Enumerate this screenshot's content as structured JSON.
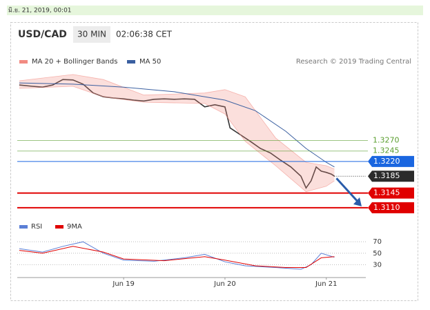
{
  "timestamp": "มิ.ย. 21, 2019, 00:01",
  "chart_data": [
    {
      "type": "line",
      "title": "USD/CAD",
      "interval": "30 MIN",
      "time": "02:06:38 CET",
      "credit": "Research © 2019 Trading Central",
      "xlim": [
        17.95,
        21.39
      ],
      "ylim": [
        1.3095,
        1.344
      ],
      "series": [
        {
          "color": "#333333",
          "x": [
            17.97,
            18.1,
            18.2,
            18.3,
            18.4,
            18.5,
            18.6,
            18.7,
            18.8,
            18.9,
            19.0,
            19.1,
            19.2,
            19.3,
            19.4,
            19.5,
            19.6,
            19.7,
            19.8,
            19.9,
            20.0,
            20.05,
            20.15,
            20.25,
            20.35,
            20.45,
            20.55,
            20.65,
            20.75,
            20.8,
            20.85,
            20.9,
            20.95,
            21.0,
            21.05,
            21.08
          ],
          "values": [
            1.3402,
            1.3399,
            1.3397,
            1.3402,
            1.3415,
            1.3414,
            1.3404,
            1.3383,
            1.3374,
            1.3371,
            1.3369,
            1.3366,
            1.3364,
            1.3368,
            1.3369,
            1.3368,
            1.3369,
            1.3368,
            1.335,
            1.3355,
            1.335,
            1.33,
            1.3284,
            1.3268,
            1.3251,
            1.324,
            1.3223,
            1.3207,
            1.3185,
            1.3157,
            1.3174,
            1.3207,
            1.3197,
            1.3194,
            1.319,
            1.3185
          ]
        },
        {
          "name": "MA 20 + Bollinger Bands",
          "color": "#f28b82",
          "x": [
            17.97,
            18.5,
            18.8,
            19.2,
            19.8,
            20.0,
            20.2,
            20.5,
            20.8,
            21.0,
            21.08
          ],
          "upper": [
            1.3412,
            1.3427,
            1.3415,
            1.3378,
            1.3383,
            1.3391,
            1.3374,
            1.3276,
            1.3218,
            1.321,
            1.3202
          ],
          "lower": [
            1.3394,
            1.3399,
            1.3374,
            1.3361,
            1.3358,
            1.3333,
            1.3268,
            1.321,
            1.3148,
            1.3161,
            1.3174
          ]
        },
        {
          "name": "MA 50",
          "color": "#3a5fa0",
          "x": [
            17.97,
            18.5,
            19.0,
            19.5,
            20.0,
            20.3,
            20.6,
            20.8,
            21.0,
            21.08
          ],
          "values": [
            1.3407,
            1.3404,
            1.3397,
            1.3386,
            1.3366,
            1.3341,
            1.3292,
            1.3251,
            1.3218,
            1.3207
          ]
        }
      ],
      "levels": [
        {
          "value": 1.327,
          "label": "1.3270",
          "color": "#5a9e2f",
          "style": "text"
        },
        {
          "value": 1.3245,
          "label": "1.3245",
          "color": "#5a9e2f",
          "style": "text"
        },
        {
          "value": 1.322,
          "label": "1.3220",
          "color": "#1a66e0",
          "style": "box"
        },
        {
          "value": 1.3185,
          "label": "1.3185",
          "color": "#2b2b2b",
          "style": "current"
        },
        {
          "value": 1.3145,
          "label": "1.3145",
          "color": "#e00000",
          "style": "box"
        },
        {
          "value": 1.311,
          "label": "1.3110",
          "color": "#e00000",
          "style": "box"
        }
      ]
    },
    {
      "type": "line",
      "xlim": [
        17.95,
        21.39
      ],
      "ylim": [
        10,
        75
      ],
      "yticks": [
        70,
        50,
        30
      ],
      "xticks": [
        {
          "value": 19,
          "label": "Jun 19"
        },
        {
          "value": 20,
          "label": "Jun 20"
        },
        {
          "value": 21,
          "label": "Jun 21"
        }
      ],
      "series": [
        {
          "name": "RSI",
          "color": "#5b7fd6",
          "x": [
            17.97,
            18.2,
            18.4,
            18.6,
            18.8,
            19.0,
            19.3,
            19.6,
            19.8,
            20.0,
            20.2,
            20.5,
            20.75,
            20.85,
            20.95,
            21.08
          ],
          "values": [
            58,
            52,
            62,
            70,
            50,
            38,
            36,
            42,
            48,
            35,
            28,
            25,
            22,
            30,
            50,
            43
          ]
        },
        {
          "name": "9MA",
          "color": "#e00000",
          "x": [
            17.97,
            18.2,
            18.5,
            18.8,
            19.0,
            19.4,
            19.8,
            20.0,
            20.3,
            20.6,
            20.8,
            20.95,
            21.08
          ],
          "values": [
            55,
            50,
            62,
            52,
            40,
            37,
            44,
            38,
            28,
            25,
            25,
            42,
            44
          ]
        }
      ]
    }
  ]
}
